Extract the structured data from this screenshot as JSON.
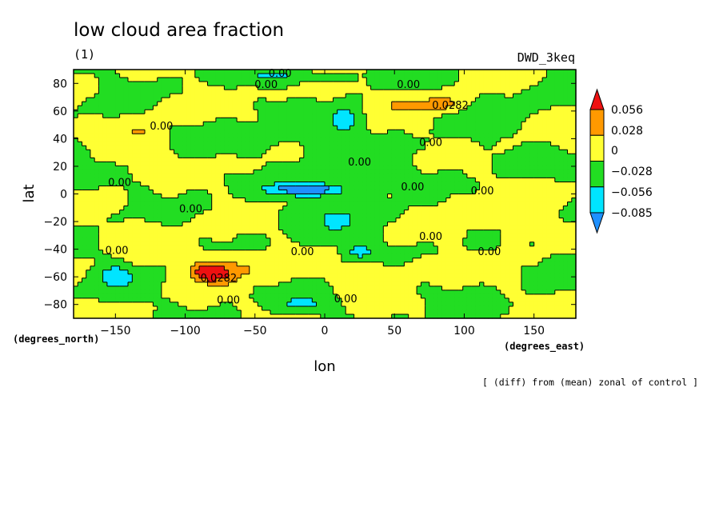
{
  "chart_data": {
    "type": "heatmap",
    "title": "low cloud area fraction",
    "subtitle": "(1)",
    "model": "DWD_3keq",
    "xlabel": "lon",
    "ylabel": "lat",
    "x_unit_label": "(degrees_east)",
    "y_unit_label": "(degrees_north)",
    "note": "[ (diff) from (mean) zonal of control ]",
    "xlim": [
      -180,
      180
    ],
    "ylim": [
      -90,
      90
    ],
    "x_ticks": [
      -150,
      -100,
      -50,
      0,
      50,
      100,
      150
    ],
    "y_ticks": [
      -80,
      -60,
      -40,
      -20,
      0,
      20,
      40,
      60,
      80
    ],
    "x_tick_labels": [
      "−150",
      "−100",
      "−50",
      "0",
      "50",
      "100",
      "150"
    ],
    "y_tick_labels": [
      "−80",
      "−60",
      "−40",
      "−20",
      "0",
      "20",
      "40",
      "60",
      "80"
    ],
    "colorbar": {
      "colors": [
        "#1e90ff",
        "#00e5ff",
        "#22dd22",
        "#ffff33",
        "#ff9900",
        "#ee1111"
      ],
      "levels": [
        -0.085,
        -0.056,
        -0.028,
        0,
        0.028,
        0.056
      ],
      "labels": [
        "−0.085",
        "−0.056",
        "−0.028",
        "0",
        "0.028",
        "0.056"
      ]
    },
    "contour_labels": [
      {
        "text": "0.00",
        "lon": -32,
        "lat": 87
      },
      {
        "text": "0.00",
        "lon": -42,
        "lat": 79
      },
      {
        "text": "0.00",
        "lon": 60,
        "lat": 79
      },
      {
        "text": "0.0282",
        "lon": 90,
        "lat": 64
      },
      {
        "text": "0.00",
        "lon": -117,
        "lat": 49
      },
      {
        "text": "0.00",
        "lon": 76,
        "lat": 37
      },
      {
        "text": "0.00",
        "lon": 25,
        "lat": 23
      },
      {
        "text": "0.00",
        "lon": -147,
        "lat": 8
      },
      {
        "text": "0.00",
        "lon": 63,
        "lat": 5
      },
      {
        "text": "0.00",
        "lon": 113,
        "lat": 2
      },
      {
        "text": "0.00",
        "lon": -96,
        "lat": -11
      },
      {
        "text": "0.00",
        "lon": 76,
        "lat": -31
      },
      {
        "text": "0.00",
        "lon": -149,
        "lat": -41
      },
      {
        "text": "0.00",
        "lon": -16,
        "lat": -42
      },
      {
        "text": "0.00",
        "lon": 118,
        "lat": -42
      },
      {
        "text": "0.0282",
        "lon": -76,
        "lat": -61
      },
      {
        "text": "0.00",
        "lon": -69,
        "lat": -77
      },
      {
        "text": "0.00",
        "lon": 15,
        "lat": -76
      }
    ]
  }
}
